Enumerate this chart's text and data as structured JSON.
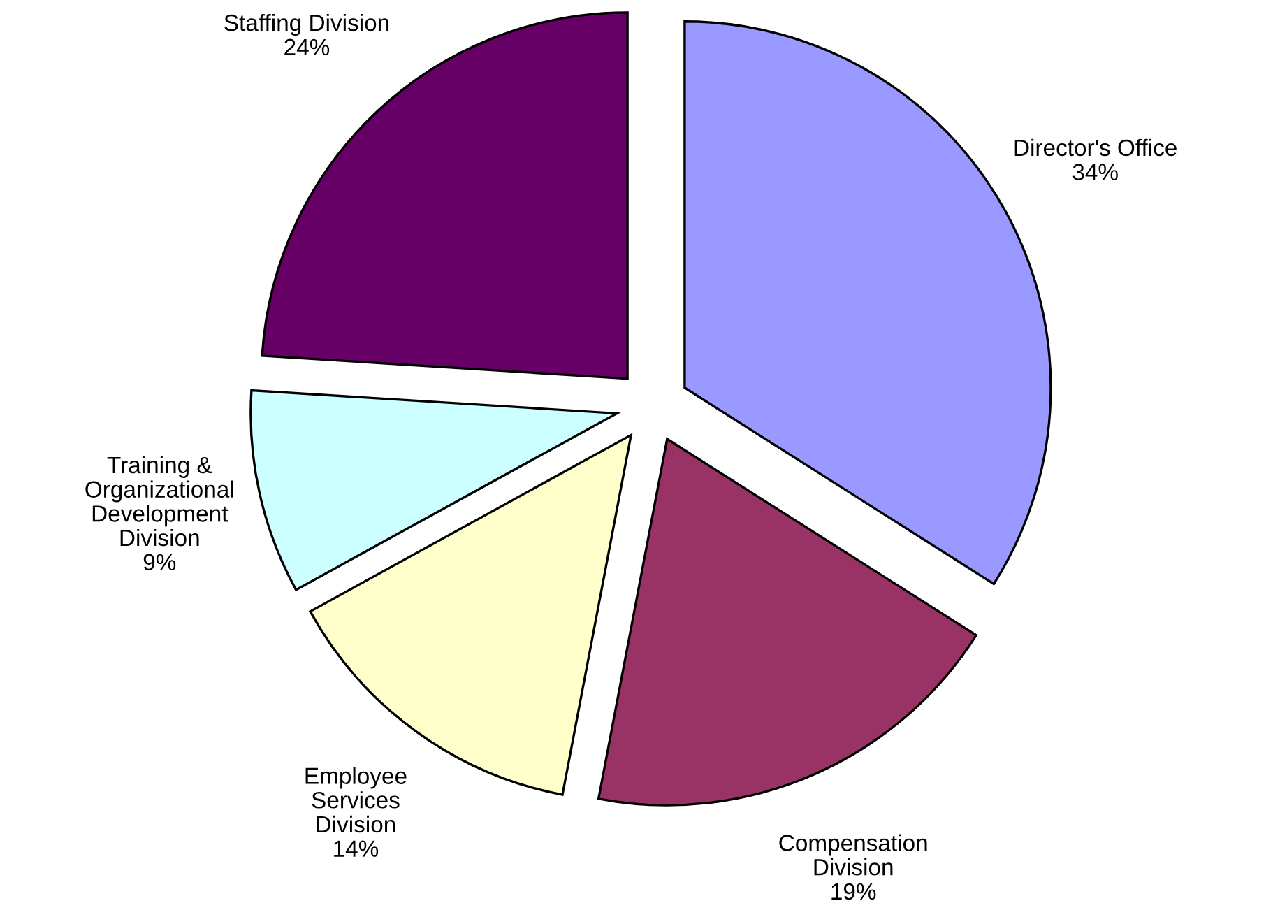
{
  "chart_data": {
    "type": "pie",
    "categories": [
      "Director's Office",
      "Compensation\nDivision",
      "Employee\nServices\nDivision",
      "Training &\nOrganizational\nDevelopment\nDivision",
      "Staffing Division"
    ],
    "values": [
      34,
      19,
      14,
      9,
      24
    ],
    "value_labels": [
      "34%",
      "19%",
      "14%",
      "9%",
      "24%"
    ],
    "colors": [
      "#9999ff",
      "#993366",
      "#ffffcc",
      "#ccffff",
      "#660066"
    ],
    "legend": false
  }
}
